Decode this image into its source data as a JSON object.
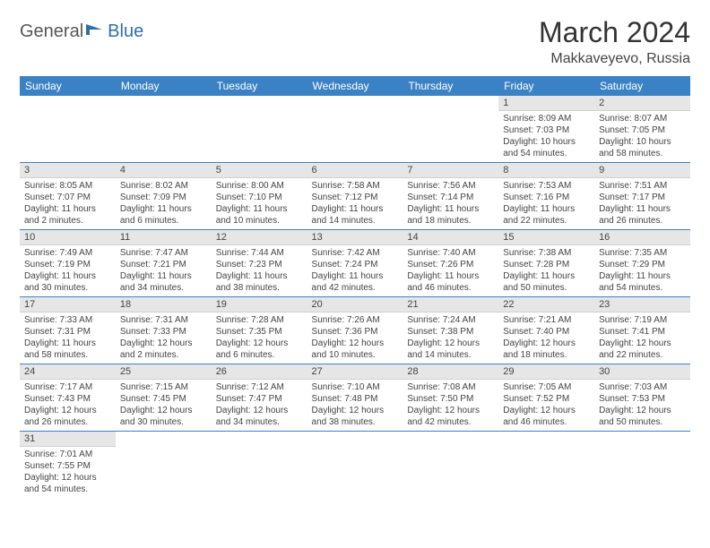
{
  "logo": {
    "text1": "General",
    "text2": "Blue"
  },
  "title": "March 2024",
  "location": "Makkaveyevo, Russia",
  "colors": {
    "header_bg": "#3b82c4",
    "header_text": "#ffffff",
    "daynum_bg": "#e6e6e6",
    "border": "#3b82c4",
    "text": "#444444"
  },
  "weekdays": [
    "Sunday",
    "Monday",
    "Tuesday",
    "Wednesday",
    "Thursday",
    "Friday",
    "Saturday"
  ],
  "weeks": [
    [
      null,
      null,
      null,
      null,
      null,
      {
        "n": "1",
        "sr": "8:09 AM",
        "ss": "7:03 PM",
        "dl": "10 hours and 54 minutes."
      },
      {
        "n": "2",
        "sr": "8:07 AM",
        "ss": "7:05 PM",
        "dl": "10 hours and 58 minutes."
      }
    ],
    [
      {
        "n": "3",
        "sr": "8:05 AM",
        "ss": "7:07 PM",
        "dl": "11 hours and 2 minutes."
      },
      {
        "n": "4",
        "sr": "8:02 AM",
        "ss": "7:09 PM",
        "dl": "11 hours and 6 minutes."
      },
      {
        "n": "5",
        "sr": "8:00 AM",
        "ss": "7:10 PM",
        "dl": "11 hours and 10 minutes."
      },
      {
        "n": "6",
        "sr": "7:58 AM",
        "ss": "7:12 PM",
        "dl": "11 hours and 14 minutes."
      },
      {
        "n": "7",
        "sr": "7:56 AM",
        "ss": "7:14 PM",
        "dl": "11 hours and 18 minutes."
      },
      {
        "n": "8",
        "sr": "7:53 AM",
        "ss": "7:16 PM",
        "dl": "11 hours and 22 minutes."
      },
      {
        "n": "9",
        "sr": "7:51 AM",
        "ss": "7:17 PM",
        "dl": "11 hours and 26 minutes."
      }
    ],
    [
      {
        "n": "10",
        "sr": "7:49 AM",
        "ss": "7:19 PM",
        "dl": "11 hours and 30 minutes."
      },
      {
        "n": "11",
        "sr": "7:47 AM",
        "ss": "7:21 PM",
        "dl": "11 hours and 34 minutes."
      },
      {
        "n": "12",
        "sr": "7:44 AM",
        "ss": "7:23 PM",
        "dl": "11 hours and 38 minutes."
      },
      {
        "n": "13",
        "sr": "7:42 AM",
        "ss": "7:24 PM",
        "dl": "11 hours and 42 minutes."
      },
      {
        "n": "14",
        "sr": "7:40 AM",
        "ss": "7:26 PM",
        "dl": "11 hours and 46 minutes."
      },
      {
        "n": "15",
        "sr": "7:38 AM",
        "ss": "7:28 PM",
        "dl": "11 hours and 50 minutes."
      },
      {
        "n": "16",
        "sr": "7:35 AM",
        "ss": "7:29 PM",
        "dl": "11 hours and 54 minutes."
      }
    ],
    [
      {
        "n": "17",
        "sr": "7:33 AM",
        "ss": "7:31 PM",
        "dl": "11 hours and 58 minutes."
      },
      {
        "n": "18",
        "sr": "7:31 AM",
        "ss": "7:33 PM",
        "dl": "12 hours and 2 minutes."
      },
      {
        "n": "19",
        "sr": "7:28 AM",
        "ss": "7:35 PM",
        "dl": "12 hours and 6 minutes."
      },
      {
        "n": "20",
        "sr": "7:26 AM",
        "ss": "7:36 PM",
        "dl": "12 hours and 10 minutes."
      },
      {
        "n": "21",
        "sr": "7:24 AM",
        "ss": "7:38 PM",
        "dl": "12 hours and 14 minutes."
      },
      {
        "n": "22",
        "sr": "7:21 AM",
        "ss": "7:40 PM",
        "dl": "12 hours and 18 minutes."
      },
      {
        "n": "23",
        "sr": "7:19 AM",
        "ss": "7:41 PM",
        "dl": "12 hours and 22 minutes."
      }
    ],
    [
      {
        "n": "24",
        "sr": "7:17 AM",
        "ss": "7:43 PM",
        "dl": "12 hours and 26 minutes."
      },
      {
        "n": "25",
        "sr": "7:15 AM",
        "ss": "7:45 PM",
        "dl": "12 hours and 30 minutes."
      },
      {
        "n": "26",
        "sr": "7:12 AM",
        "ss": "7:47 PM",
        "dl": "12 hours and 34 minutes."
      },
      {
        "n": "27",
        "sr": "7:10 AM",
        "ss": "7:48 PM",
        "dl": "12 hours and 38 minutes."
      },
      {
        "n": "28",
        "sr": "7:08 AM",
        "ss": "7:50 PM",
        "dl": "12 hours and 42 minutes."
      },
      {
        "n": "29",
        "sr": "7:05 AM",
        "ss": "7:52 PM",
        "dl": "12 hours and 46 minutes."
      },
      {
        "n": "30",
        "sr": "7:03 AM",
        "ss": "7:53 PM",
        "dl": "12 hours and 50 minutes."
      }
    ],
    [
      {
        "n": "31",
        "sr": "7:01 AM",
        "ss": "7:55 PM",
        "dl": "12 hours and 54 minutes."
      },
      null,
      null,
      null,
      null,
      null,
      null
    ]
  ],
  "labels": {
    "sunrise": "Sunrise:",
    "sunset": "Sunset:",
    "daylight": "Daylight:"
  }
}
